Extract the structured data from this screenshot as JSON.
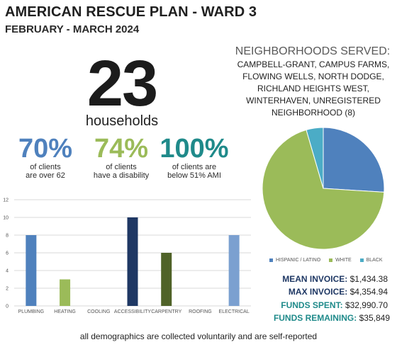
{
  "header": {
    "title": "AMERICAN RESCUE PLAN - WARD 3",
    "subtitle": "FEBRUARY - MARCH 2024"
  },
  "households": {
    "number": "23",
    "label": "households"
  },
  "stats": [
    {
      "value": "70%",
      "line1": "of clients",
      "line2": "are over 62",
      "color": "#4f81bd"
    },
    {
      "value": "74%",
      "line1": "of clients",
      "line2": "have a disability",
      "color": "#9bbb59"
    },
    {
      "value": "100%",
      "line1": "of clients are",
      "line2": "below 51% AMI",
      "color": "#1f8a8a"
    }
  ],
  "neighborhoods": {
    "title": "NEIGHBORHOODS SERVED:",
    "list": "CAMPBELL-GRANT, CAMPUS FARMS, FLOWING WELLS, NORTH DODGE, RICHLAND HEIGHTS WEST, WINTERHAVEN, UNREGISTERED NEIGHBORHOOD (8)"
  },
  "finances": [
    {
      "label": "MEAN INVOICE:",
      "value": "$1,434.38",
      "color": "#1f3864"
    },
    {
      "label": "MAX INVOICE:",
      "value": "$4,354.94",
      "color": "#1f3864"
    },
    {
      "label": "FUNDS SPENT:",
      "value": "$32,990.70",
      "color": "#1f8a8a"
    },
    {
      "label": "FUNDS REMAINING:",
      "value": "$35,849",
      "color": "#1f8a8a"
    }
  ],
  "footer": "all demographics are collected voluntarily and are self-reported",
  "chart_data": [
    {
      "type": "bar",
      "categories": [
        "PLUMBING",
        "HEATING",
        "COOLING",
        "ACCESSIBILITY",
        "CARPENTRY",
        "ROOFING",
        "ELECTRICAL"
      ],
      "values": [
        8,
        3,
        0,
        10,
        6,
        0,
        8
      ],
      "colors": [
        "#4f81bd",
        "#9bbb59",
        "#4bacc6",
        "#1f3864",
        "#4f6228",
        "#31859c",
        "#7ba0d0"
      ],
      "ylim": [
        0,
        12
      ],
      "yticks": [
        0,
        2,
        4,
        6,
        8,
        10,
        12
      ],
      "grid": true
    },
    {
      "type": "pie",
      "labels": [
        "HISPANIC / LATINO",
        "WHITE",
        "BLACK"
      ],
      "values": [
        26,
        69.5,
        4.5
      ],
      "colors": [
        "#4f81bd",
        "#9bbb59",
        "#4bacc6"
      ],
      "legend": "bottom"
    }
  ]
}
